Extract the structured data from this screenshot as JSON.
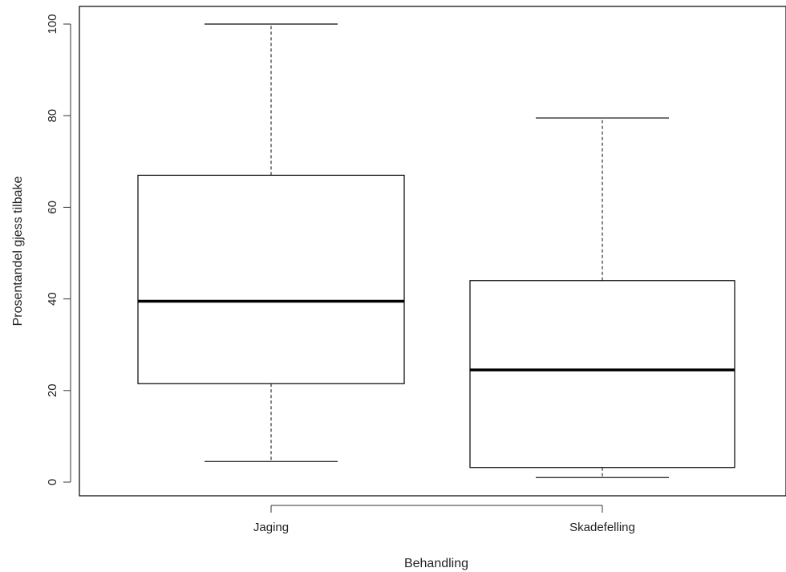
{
  "chart_data": {
    "type": "box",
    "xlabel": "Behandling",
    "ylabel": "Prosentandel gjess tilbake",
    "ylim": [
      -3,
      103.8
    ],
    "yticks": [
      0,
      20,
      40,
      60,
      80,
      100
    ],
    "grid": false,
    "categories": [
      "Jaging",
      "Skadefelling"
    ],
    "boxes": [
      {
        "name": "Jaging",
        "min": 4.5,
        "q1": 21.5,
        "median": 39.5,
        "q3": 67,
        "max": 100
      },
      {
        "name": "Skadefelling",
        "min": 1,
        "q1": 3.2,
        "median": 24.5,
        "q3": 44,
        "max": 79.5
      }
    ],
    "colors": {
      "box_fill": "#ffffff",
      "stroke": "#000000",
      "whisker": "#333333"
    }
  }
}
